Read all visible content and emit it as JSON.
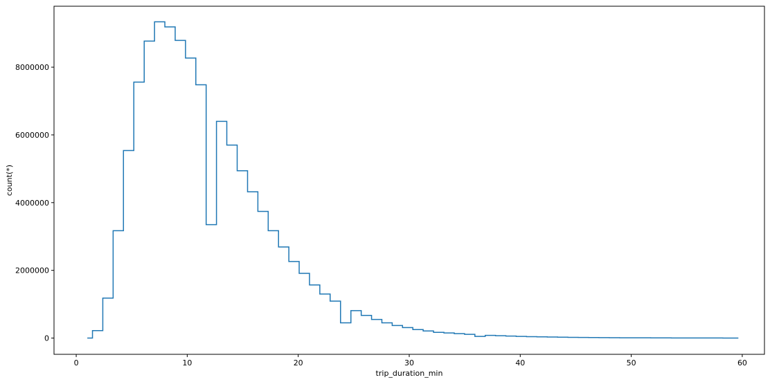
{
  "chart_data": {
    "type": "line",
    "drawstyle": "steps-mid",
    "xlabel": "trip_duration_min",
    "ylabel": "count(*)",
    "xlim": [
      -2,
      62
    ],
    "ylim": [
      -480000,
      9800000
    ],
    "xticks": [
      0,
      10,
      20,
      30,
      40,
      50,
      60
    ],
    "xtick_labels": [
      "0",
      "10",
      "20",
      "30",
      "40",
      "50",
      "60"
    ],
    "yticks": [
      0,
      2000000,
      4000000,
      6000000,
      8000000
    ],
    "ytick_labels": [
      "0",
      "2000000",
      "4000000",
      "6000000",
      "8000000"
    ],
    "grid": false,
    "legend": "none",
    "series": [
      {
        "color": "#1f77b4",
        "x": [
          1.0,
          1.93,
          2.86,
          3.79,
          4.72,
          5.66,
          6.59,
          7.52,
          8.45,
          9.38,
          10.31,
          11.24,
          12.17,
          13.1,
          14.03,
          14.97,
          15.9,
          16.83,
          17.76,
          18.69,
          19.62,
          20.55,
          21.48,
          22.41,
          23.34,
          24.28,
          25.21,
          26.14,
          27.07,
          28.0,
          28.93,
          29.86,
          30.79,
          31.72,
          32.66,
          33.59,
          34.52,
          35.45,
          36.38,
          37.31,
          38.24,
          39.17,
          40.1,
          41.03,
          41.97,
          42.9,
          43.83,
          44.76,
          45.69,
          46.62,
          47.55,
          48.48,
          49.41,
          50.34,
          51.28,
          52.21,
          53.14,
          54.07,
          55.0,
          55.93,
          56.86,
          57.79,
          58.72,
          59.65
        ],
        "values": [
          0,
          220000,
          1180000,
          3170000,
          5540000,
          7560000,
          8770000,
          9340000,
          9190000,
          8790000,
          8270000,
          7480000,
          3350000,
          6400000,
          5700000,
          4940000,
          4320000,
          3740000,
          3170000,
          2690000,
          2260000,
          1910000,
          1570000,
          1300000,
          1090000,
          450000,
          810000,
          670000,
          550000,
          450000,
          370000,
          310000,
          250000,
          210000,
          170000,
          150000,
          130000,
          110000,
          50000,
          80000,
          70000,
          60000,
          50000,
          40000,
          35000,
          30000,
          25000,
          20000,
          18000,
          15000,
          12000,
          10000,
          9000,
          8000,
          7000,
          6000,
          5000,
          4000,
          3500,
          3000,
          2500,
          2000,
          1500,
          1000
        ]
      }
    ]
  }
}
